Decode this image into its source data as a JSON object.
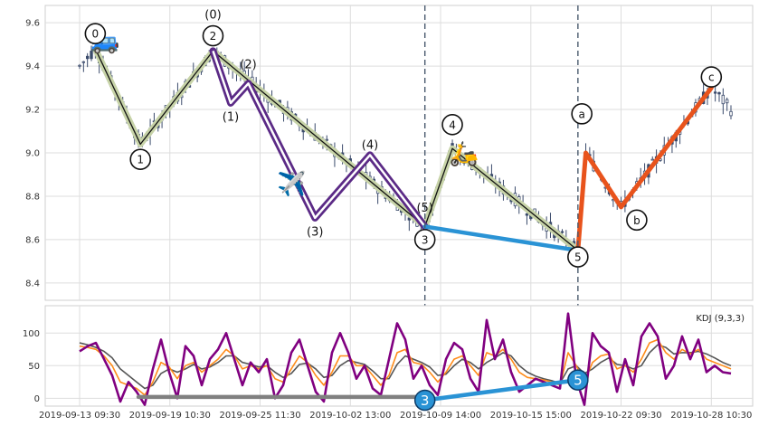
{
  "chart_data": [
    {
      "type": "candlestick",
      "panel": "price",
      "ylim": [
        8.32,
        9.68
      ],
      "yticks": [
        8.4,
        8.6,
        8.8,
        9.0,
        9.2,
        9.4,
        9.6
      ],
      "ytick_labels": [
        "8.4",
        "8.6",
        "8.8",
        "9.0",
        "9.2",
        "9.4",
        "9.6"
      ],
      "grid": true,
      "color": "#3a4a6b",
      "wave_labels": [
        {
          "text": "0",
          "boxed": true,
          "x": 4,
          "y": 9.55
        },
        {
          "text": "1",
          "boxed": true,
          "x": 15.5,
          "y": 8.97
        },
        {
          "text": "2",
          "boxed": true,
          "x": 34,
          "y": 9.54
        },
        {
          "text": "(0)",
          "boxed": false,
          "x": 34,
          "y": 9.64
        },
        {
          "text": "(1)",
          "boxed": false,
          "x": 38.5,
          "y": 9.17
        },
        {
          "text": "(2)",
          "boxed": false,
          "x": 43,
          "y": 9.41
        },
        {
          "text": "(3)",
          "boxed": false,
          "x": 60,
          "y": 8.64
        },
        {
          "text": "(4)",
          "boxed": false,
          "x": 74,
          "y": 9.04
        },
        {
          "text": "(5)",
          "boxed": false,
          "x": 88,
          "y": 8.75
        },
        {
          "text": "3",
          "boxed": true,
          "x": 88,
          "y": 8.6
        },
        {
          "text": "4",
          "boxed": true,
          "x": 95,
          "y": 9.13
        },
        {
          "text": "5",
          "boxed": true,
          "x": 127,
          "y": 8.52
        },
        {
          "text": "a",
          "boxed": true,
          "x": 128,
          "y": 9.18
        },
        {
          "text": "b",
          "boxed": true,
          "x": 142,
          "y": 8.69
        },
        {
          "text": "c",
          "boxed": true,
          "x": 161,
          "y": 9.35
        }
      ],
      "wave_paths": [
        {
          "name": "primary-impulse",
          "color": "#c7d3a8",
          "points": [
            [
              4,
              9.48
            ],
            [
              15.5,
              9.04
            ],
            [
              34,
              9.47
            ],
            [
              88,
              8.66
            ],
            [
              95,
              9.02
            ],
            [
              127,
              8.55
            ]
          ]
        },
        {
          "name": "intermediate-impulse",
          "color": "#5b2a86",
          "points": [
            [
              34,
              9.47
            ],
            [
              38.5,
              9.23
            ],
            [
              43,
              9.32
            ],
            [
              60,
              8.7
            ],
            [
              74,
              8.99
            ],
            [
              88,
              8.66
            ]
          ]
        },
        {
          "name": "corrective-abc",
          "color": "#e8531c",
          "points": [
            [
              127,
              8.55
            ],
            [
              129,
              9.0
            ],
            [
              138,
              8.75
            ],
            [
              161,
              9.3
            ]
          ]
        },
        {
          "name": "divergence-line",
          "color": "#2a93d5",
          "points": [
            [
              88,
              8.66
            ],
            [
              127,
              8.55
            ]
          ]
        }
      ],
      "vlines_x": [
        88,
        127
      ],
      "emoji": [
        "🚙",
        "✈️",
        "🛵"
      ]
    },
    {
      "type": "line",
      "panel": "kdj",
      "legend": "KDJ (9,3,3)",
      "ylim": [
        -12,
        142
      ],
      "yticks": [
        0,
        50,
        100
      ],
      "ytick_labels": [
        "0",
        "50",
        "100"
      ],
      "x_tick_labels": [
        "2019-09-13 09:30",
        "2019-09-19 10:30",
        "2019-09-25 11:30",
        "2019-10-02 13:00",
        "2019-10-09 14:00",
        "2019-10-15 15:00",
        "2019-10-22 09:30",
        "2019-10-28 10:30"
      ],
      "x_tick_positions": [
        0,
        23,
        46,
        69,
        92,
        115,
        138,
        161
      ],
      "series": [
        {
          "color": "#800080",
          "values": [
            72,
            80,
            85,
            60,
            35,
            -5,
            25,
            10,
            -10,
            45,
            90,
            40,
            0,
            80,
            65,
            20,
            60,
            75,
            100,
            60,
            20,
            55,
            40,
            60,
            0,
            20,
            70,
            90,
            50,
            10,
            -5,
            70,
            100,
            70,
            30,
            50,
            15,
            5,
            60,
            115,
            90,
            30,
            50,
            20,
            5,
            60,
            85,
            75,
            30,
            10,
            120,
            60,
            90,
            40,
            10,
            20,
            30,
            25,
            20,
            15,
            130,
            30,
            -10,
            100,
            80,
            70,
            10,
            60,
            20,
            95,
            115,
            95,
            30,
            50,
            95,
            60,
            90,
            40,
            50,
            40,
            38
          ]
        },
        {
          "color": "#ff8c1a",
          "values": [
            80,
            78,
            75,
            65,
            50,
            25,
            20,
            15,
            5,
            25,
            55,
            48,
            30,
            50,
            55,
            40,
            50,
            60,
            75,
            65,
            45,
            50,
            45,
            50,
            30,
            25,
            45,
            65,
            55,
            35,
            20,
            40,
            65,
            65,
            50,
            50,
            35,
            20,
            35,
            70,
            75,
            55,
            52,
            40,
            25,
            40,
            60,
            65,
            50,
            35,
            70,
            65,
            75,
            60,
            40,
            32,
            30,
            28,
            25,
            20,
            70,
            50,
            25,
            55,
            65,
            68,
            45,
            50,
            40,
            60,
            85,
            90,
            70,
            60,
            75,
            68,
            75,
            60,
            55,
            50,
            45
          ]
        },
        {
          "color": "#555555",
          "values": [
            85,
            82,
            78,
            72,
            62,
            45,
            35,
            25,
            15,
            20,
            38,
            45,
            40,
            45,
            52,
            45,
            48,
            55,
            65,
            65,
            55,
            52,
            48,
            50,
            40,
            32,
            38,
            52,
            54,
            45,
            32,
            35,
            50,
            58,
            55,
            52,
            42,
            30,
            30,
            52,
            65,
            60,
            55,
            48,
            35,
            37,
            50,
            60,
            55,
            45,
            55,
            62,
            70,
            65,
            50,
            40,
            34,
            30,
            27,
            23,
            45,
            50,
            38,
            45,
            55,
            62,
            52,
            50,
            45,
            50,
            70,
            82,
            78,
            68,
            70,
            70,
            72,
            68,
            62,
            55,
            50
          ]
        }
      ],
      "reference_lines": [
        {
          "color": "#808080",
          "points": [
            [
              15,
              2
            ],
            [
              88,
              2
            ]
          ]
        },
        {
          "color": "#2a93d5",
          "points": [
            [
              88,
              -3
            ],
            [
              127,
              28
            ]
          ]
        }
      ],
      "markers": [
        {
          "text": "3",
          "x": 88,
          "y": -3
        },
        {
          "text": "5",
          "x": 127,
          "y": 28
        }
      ]
    }
  ]
}
